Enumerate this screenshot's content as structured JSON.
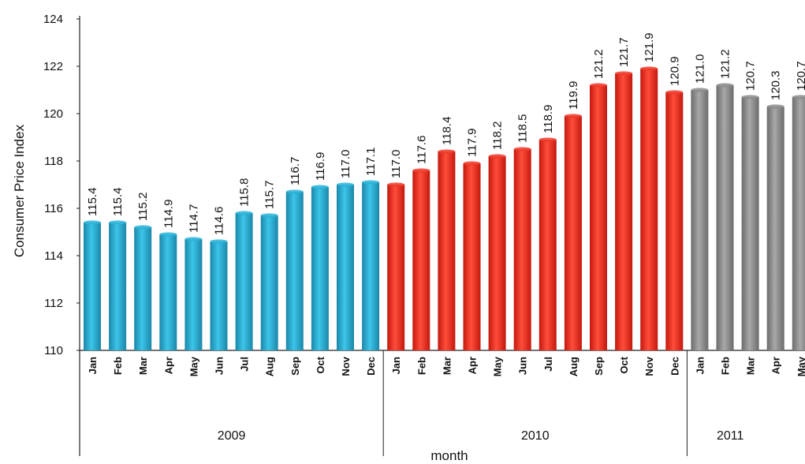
{
  "chart_data": {
    "type": "bar",
    "xlabel": "month",
    "ylabel": "Consumer Price Index",
    "ylim": [
      110,
      124
    ],
    "yticks": [
      110,
      112,
      114,
      116,
      118,
      120,
      122,
      124
    ],
    "grid": false,
    "legend": "none",
    "groups": [
      {
        "year": "2009",
        "color": "#2bb3d8",
        "categories": [
          "Jan",
          "Feb",
          "Mar",
          "Apr",
          "May",
          "Jun",
          "Jul",
          "Aug",
          "Sep",
          "Oct",
          "Nov",
          "Dec"
        ],
        "values": [
          115.4,
          115.4,
          115.2,
          114.9,
          114.7,
          114.6,
          115.8,
          115.7,
          116.7,
          116.9,
          117.0,
          117.1
        ]
      },
      {
        "year": "2010",
        "color": "#ef3b2c",
        "categories": [
          "Jan",
          "Feb",
          "Mar",
          "Apr",
          "May",
          "Jun",
          "Jul",
          "Aug",
          "Sep",
          "Oct",
          "Nov",
          "Dec"
        ],
        "values": [
          117.0,
          117.6,
          118.4,
          117.9,
          118.2,
          118.5,
          118.9,
          119.9,
          121.2,
          121.7,
          121.9,
          120.9
        ]
      },
      {
        "year": "2011",
        "color": "#8c8c8c",
        "categories": [
          "Jan",
          "Feb",
          "Mar",
          "Apr",
          "May"
        ],
        "values": [
          121.0,
          121.2,
          120.7,
          120.3,
          120.7
        ]
      }
    ]
  }
}
